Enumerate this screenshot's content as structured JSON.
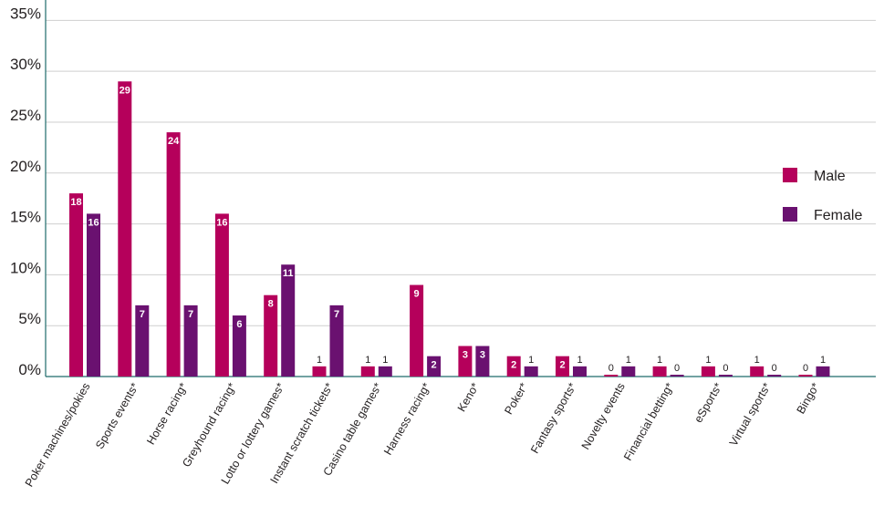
{
  "chart_data": {
    "type": "bar",
    "categories": [
      "Poker machines/pokies",
      "Sports events*",
      "Horse racing*",
      "Greyhound racing*",
      "Lotto or lottery games*",
      "Instant scratch tickets*",
      "Casino table games*",
      "Harness racing*",
      "Keno*",
      "Poker*",
      "Fantasy sports*",
      "Novelty events",
      "Financial betting*",
      "eSports*",
      "Virtual sports*",
      "Bingo*"
    ],
    "series": [
      {
        "name": "Male",
        "color": "#b5005b",
        "values": [
          18,
          29,
          24,
          16,
          8,
          1,
          1,
          9,
          3,
          2,
          2,
          0,
          1,
          1,
          1,
          0
        ]
      },
      {
        "name": "Female",
        "color": "#6a1170",
        "values": [
          16,
          7,
          7,
          6,
          11,
          7,
          1,
          2,
          3,
          1,
          1,
          1,
          0,
          0,
          0,
          1
        ]
      }
    ],
    "yticks": [
      "0%",
      "5%",
      "10%",
      "15%",
      "20%",
      "25%",
      "30%",
      "35%"
    ],
    "ylim": [
      0,
      37
    ],
    "grid": true,
    "legend": "right"
  }
}
